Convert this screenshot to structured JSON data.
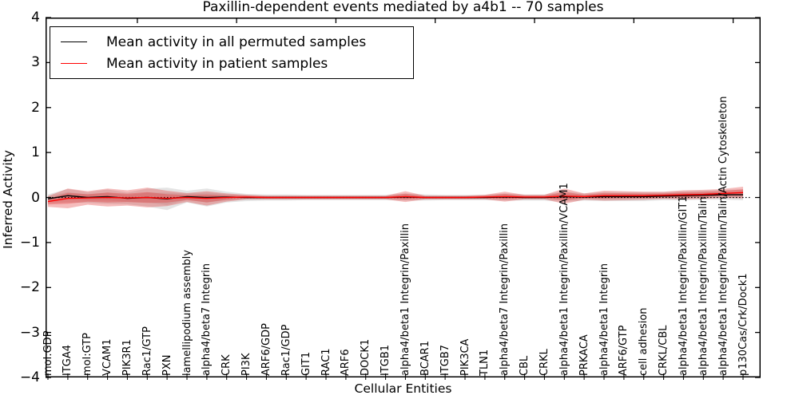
{
  "figure": {
    "background": "#ffffff"
  },
  "chart_data": {
    "type": "line",
    "title": "Paxillin-dependent events mediated by a4b1 -- 70 samples",
    "xlabel": "Cellular Entities",
    "ylabel": "Inferred Activity",
    "ylim": [
      -4,
      4
    ],
    "yticks": [
      -4,
      -3,
      -2,
      -1,
      0,
      1,
      2,
      3,
      4
    ],
    "xticks_top": [
      5,
      10,
      15,
      20,
      25,
      30,
      35
    ],
    "grid": false,
    "legend_position": "upper left",
    "zero_reference_line": {
      "y": 0,
      "style": "dotted",
      "color": "#000000"
    },
    "categories": [
      "mol:GDP",
      "ITGA4",
      "mol:GTP",
      "VCAM1",
      "PIK3R1",
      "Rac1/GTP",
      "PXN",
      "lamellipodium assembly",
      "alpha4/beta7 Integrin",
      "CRK",
      "PI3K",
      "ARF6/GDP",
      "Rac1/GDP",
      "GIT1",
      "RAC1",
      "ARF6",
      "DOCK1",
      "ITGB1",
      "alpha4/beta1 Integrin/Paxillin",
      "BCAR1",
      "ITGB7",
      "PIK3CA",
      "TLN1",
      "alpha4/beta7 Integrin/Paxillin",
      "CBL",
      "CRKL",
      "alpha4/beta1 Integrin/Paxillin/VCAM1",
      "PRKACA",
      "alpha4/beta1 Integrin",
      "ARF6/GTP",
      "cell adhesion",
      "CRKL/CBL",
      "alpha4/beta1 Integrin/Paxillin/GIT1",
      "alpha4/beta1 Integrin/Paxillin/Talin",
      "alpha4/beta1 Integrin/Paxillin/Talin/Actin Cytoskeleton",
      "p130Cas/Crk/Dock1"
    ],
    "series": [
      {
        "name": "Mean activity in all permuted samples",
        "color": "#000000",
        "band_color": "#aaaaaa",
        "values": [
          -0.03,
          0.04,
          0.0,
          0.02,
          -0.02,
          0.0,
          -0.03,
          0.02,
          0.0,
          0.01,
          0.0,
          0.0,
          0.0,
          0.0,
          0.0,
          0.0,
          0.0,
          0.0,
          0.01,
          0.0,
          0.0,
          0.0,
          0.0,
          0.01,
          0.0,
          0.0,
          0.02,
          0.01,
          0.02,
          0.02,
          0.02,
          0.03,
          0.04,
          0.05,
          0.06,
          0.06
        ],
        "band_halfwidth": [
          0.1,
          0.15,
          0.12,
          0.16,
          0.13,
          0.2,
          0.25,
          0.13,
          0.2,
          0.12,
          0.08,
          0.07,
          0.07,
          0.06,
          0.06,
          0.06,
          0.06,
          0.06,
          0.08,
          0.07,
          0.06,
          0.06,
          0.06,
          0.08,
          0.07,
          0.07,
          0.12,
          0.08,
          0.1,
          0.1,
          0.1,
          0.09,
          0.1,
          0.1,
          0.11,
          0.12
        ]
      },
      {
        "name": "Mean activity in patient samples",
        "color": "#ff0000",
        "band_color": "#e03030",
        "values": [
          -0.09,
          -0.02,
          -0.01,
          0.0,
          -0.01,
          0.0,
          -0.02,
          0.0,
          -0.02,
          0.0,
          0.01,
          0.0,
          0.0,
          0.0,
          0.0,
          0.0,
          0.0,
          0.0,
          0.02,
          0.0,
          0.0,
          0.0,
          0.01,
          0.02,
          0.01,
          0.01,
          0.03,
          0.02,
          0.04,
          0.04,
          0.04,
          0.05,
          0.06,
          0.07,
          0.09,
          0.11
        ],
        "band_halfwidth": [
          0.12,
          0.22,
          0.15,
          0.2,
          0.17,
          0.22,
          0.17,
          0.1,
          0.16,
          0.09,
          0.05,
          0.04,
          0.04,
          0.04,
          0.04,
          0.04,
          0.04,
          0.04,
          0.12,
          0.04,
          0.04,
          0.04,
          0.05,
          0.11,
          0.05,
          0.05,
          0.17,
          0.07,
          0.11,
          0.1,
          0.09,
          0.08,
          0.1,
          0.1,
          0.1,
          0.13
        ]
      }
    ]
  }
}
